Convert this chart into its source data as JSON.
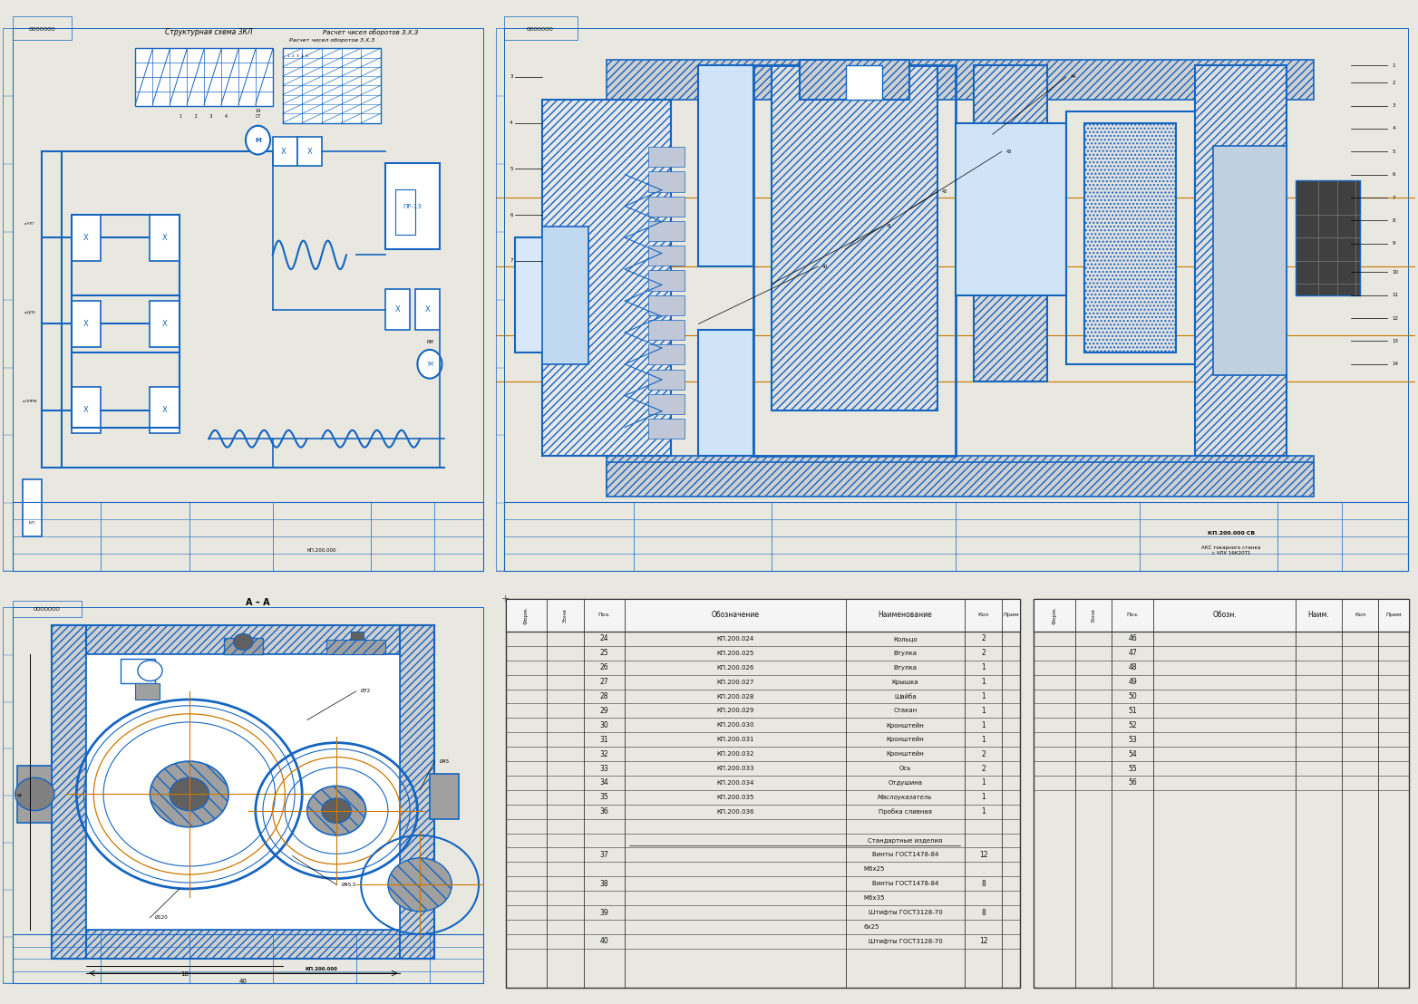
{
  "bg_color": "#e8e8e0",
  "paper_color": "#ffffff",
  "blue": "#1565c0",
  "dark_blue": "#0d3c8a",
  "orange": "#cc7700",
  "black": "#000000",
  "gray_hatch": "#888888",
  "light_gray": "#d0d0d0",
  "med_gray": "#a0a0a0",
  "dark_gray": "#606060",
  "panel_divider": "#aaaaaa",
  "spec_rows": [
    {
      "pos": "24",
      "oboz": "КП.200.024",
      "name": "Кольцо",
      "kol": "2"
    },
    {
      "pos": "25",
      "oboz": "КП.200.025",
      "name": "Втулка",
      "kol": "2"
    },
    {
      "pos": "26",
      "oboz": "КП.200.026",
      "name": "Втулка",
      "kol": "1"
    },
    {
      "pos": "27",
      "oboz": "КП.200.027",
      "name": "Крышка",
      "kol": "1"
    },
    {
      "pos": "28",
      "oboz": "КП.200.028",
      "name": "Шайба",
      "kol": "1"
    },
    {
      "pos": "29",
      "oboz": "КП.200.029",
      "name": "Стакан",
      "kol": "1"
    },
    {
      "pos": "30",
      "oboz": "КП.200.030",
      "name": "Кронштейн",
      "kol": "1"
    },
    {
      "pos": "31",
      "oboz": "КП.200.031",
      "name": "Кронштейн",
      "kol": "1"
    },
    {
      "pos": "32",
      "oboz": "КП.200.032",
      "name": "Кронштейн",
      "kol": "2"
    },
    {
      "pos": "33",
      "oboz": "КП.200.033",
      "name": "Ось",
      "kol": "2"
    },
    {
      "pos": "34",
      "oboz": "КП.200.034",
      "name": "Отдушина",
      "kol": "1"
    },
    {
      "pos": "35",
      "oboz": "КП.200.035",
      "name": "Маслоуказатель",
      "kol": "1"
    },
    {
      "pos": "36",
      "oboz": "КП.200.036",
      "name": "Пробка сливная",
      "kol": "1"
    },
    {
      "pos": "",
      "oboz": "",
      "name": "",
      "kol": ""
    },
    {
      "pos": "",
      "oboz": "",
      "name": "Стандартные изделия",
      "kol": ""
    },
    {
      "pos": "37",
      "oboz": "",
      "name": "Винты ГОСТ1478-84",
      "kol": "12"
    },
    {
      "pos": "",
      "oboz": "",
      "name": "М6х25",
      "kol": ""
    },
    {
      "pos": "38",
      "oboz": "",
      "name": "Винты ГОСТ1478-84",
      "kol": "8"
    },
    {
      "pos": "",
      "oboz": "",
      "name": "М6х35",
      "kol": ""
    },
    {
      "pos": "39",
      "oboz": "",
      "name": "Штифты ГОСТ3128-70",
      "kol": "8"
    },
    {
      "pos": "",
      "oboz": "",
      "name": "6х25",
      "kol": ""
    },
    {
      "pos": "40",
      "oboz": "",
      "name": "Штифты ГОСТ3128-70",
      "kol": "12"
    }
  ],
  "spec_rows2_pos": [
    "46",
    "47",
    "48",
    "49",
    "50",
    "51",
    "52",
    "53",
    "54",
    "55",
    "56"
  ]
}
